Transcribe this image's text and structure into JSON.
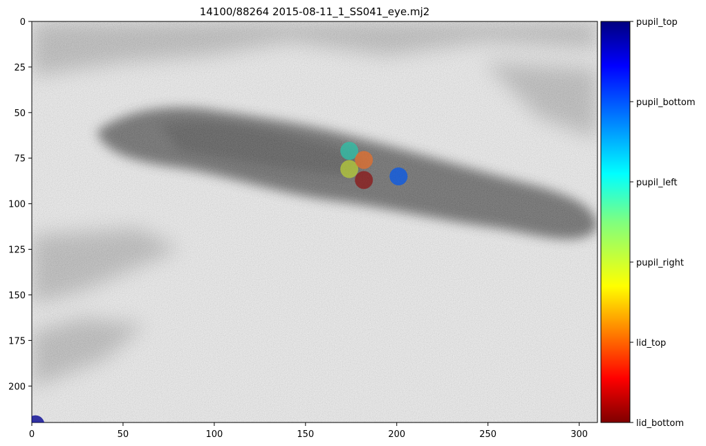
{
  "chart_data": {
    "type": "scatter",
    "title": "14100/88264 2015-08-11_1_SS041_eye.mj2",
    "xlabel": "",
    "ylabel": "",
    "xlim": [
      0,
      310
    ],
    "ylim": [
      220,
      0
    ],
    "y_inverted": true,
    "grid": false,
    "background": "grayscale eye video frame",
    "x_ticks": [
      0,
      50,
      100,
      150,
      200,
      250,
      300
    ],
    "y_ticks": [
      0,
      25,
      50,
      75,
      100,
      125,
      150,
      175,
      200
    ],
    "colorbar": {
      "colormap": "jet",
      "labels": [
        "pupil_top",
        "pupil_bottom",
        "pupil_left",
        "pupil_right",
        "lid_top",
        "lid_bottom"
      ]
    },
    "points": [
      {
        "label": "pupil_top",
        "x": 2,
        "y": 221,
        "color": "#00008f"
      },
      {
        "label": "pupil_bottom",
        "x": 201,
        "y": 85,
        "color": "#0a5ae6"
      },
      {
        "label": "pupil_left",
        "x": 174,
        "y": 71,
        "color": "#2fbfa6"
      },
      {
        "label": "pupil_right",
        "x": 174,
        "y": 81,
        "color": "#b4c83a"
      },
      {
        "label": "lid_top",
        "x": 182,
        "y": 76,
        "color": "#e07030"
      },
      {
        "label": "lid_bottom",
        "x": 182,
        "y": 87,
        "color": "#8a1a1a"
      }
    ]
  }
}
